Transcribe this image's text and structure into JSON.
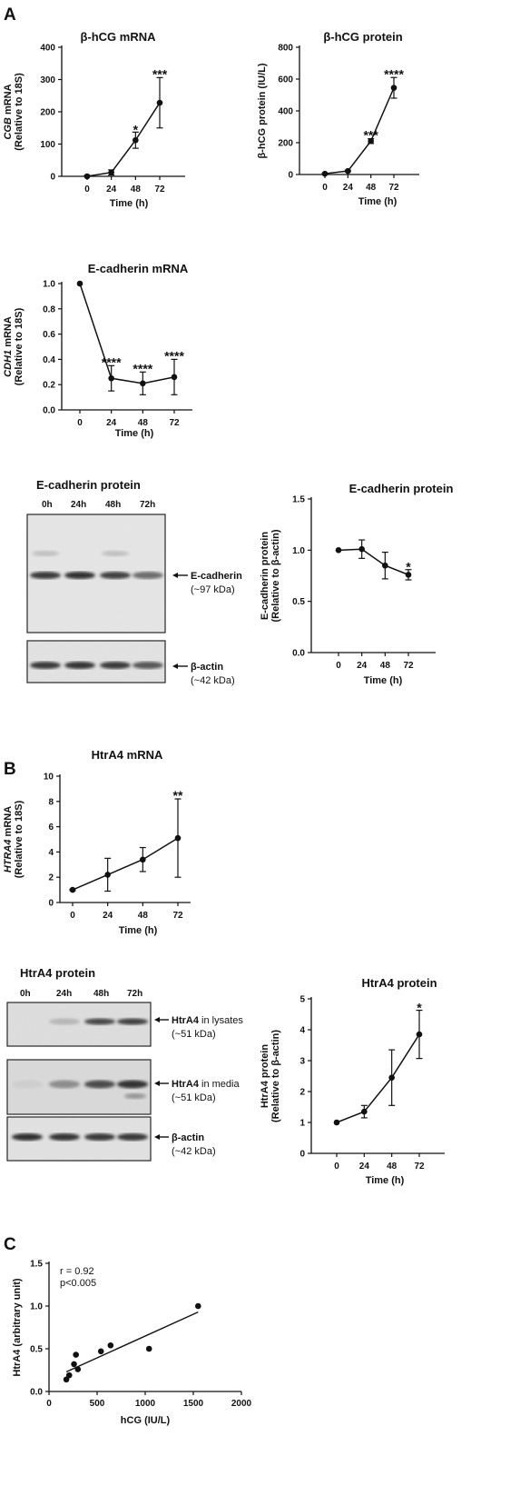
{
  "panels": {
    "A": "A",
    "B": "B",
    "C": "C"
  },
  "chart_data": [
    {
      "id": "hcg-mrna",
      "type": "line",
      "title": "β-hCG mRNA",
      "xlabel": "Time (h)",
      "ylabel_italic": "CGB",
      "ylabel_rest": " mRNA",
      "ylabel2": "(Relative to 18S)",
      "ylim": [
        0,
        400
      ],
      "yticks": [
        0,
        100,
        200,
        300,
        400
      ],
      "x": [
        0,
        24,
        48,
        72
      ],
      "xticks": [
        "0",
        "24",
        "48",
        "72"
      ],
      "values": [
        0,
        12,
        112,
        228
      ],
      "errors": [
        3,
        8,
        25,
        78
      ],
      "significance": [
        "",
        "",
        "*",
        "***"
      ]
    },
    {
      "id": "hcg-protein",
      "type": "line",
      "title": "β-hCG protein",
      "xlabel": "Time (h)",
      "ylabel": "β-hCG protein (IU/L)",
      "ylim": [
        0,
        800
      ],
      "yticks": [
        0,
        200,
        400,
        600,
        800
      ],
      "x": [
        0,
        24,
        48,
        72
      ],
      "xticks": [
        "0",
        "24",
        "48",
        "72"
      ],
      "values": [
        5,
        22,
        210,
        545
      ],
      "errors": [
        3,
        5,
        15,
        65
      ],
      "significance": [
        "",
        "",
        "***",
        "****"
      ]
    },
    {
      "id": "ecad-mrna",
      "type": "line",
      "title": "E-cadherin mRNA",
      "xlabel": "Time (h)",
      "ylabel_italic": "CDH1",
      "ylabel_rest": " mRNA",
      "ylabel2": "(Relative to 18S)",
      "ylim": [
        0,
        1.0
      ],
      "yticks": [
        "0.0",
        "0.2",
        "0.4",
        "0.6",
        "0.8",
        "1.0"
      ],
      "x": [
        0,
        24,
        48,
        72
      ],
      "xticks": [
        "0",
        "24",
        "48",
        "72"
      ],
      "values": [
        1.0,
        0.25,
        0.21,
        0.26
      ],
      "errors": [
        0,
        0.1,
        0.09,
        0.14
      ],
      "significance": [
        "",
        "****",
        "****",
        "****"
      ]
    },
    {
      "id": "ecad-protein",
      "type": "line",
      "title": "E-cadherin protein",
      "xlabel": "Time (h)",
      "ylabel": "E-cadherin protein",
      "ylabel2": "(Relative to β-actin)",
      "ylim": [
        0,
        1.5
      ],
      "yticks": [
        "0.0",
        "0.5",
        "1.0",
        "1.5"
      ],
      "x": [
        0,
        24,
        48,
        72
      ],
      "xticks": [
        "0",
        "24",
        "48",
        "72"
      ],
      "values": [
        1.0,
        1.01,
        0.85,
        0.76
      ],
      "errors": [
        0,
        0.09,
        0.13,
        0.05
      ],
      "significance": [
        "",
        "",
        "",
        "*"
      ]
    },
    {
      "id": "htra4-mrna",
      "type": "line",
      "title": "HtrA4 mRNA",
      "xlabel": "Time (h)",
      "ylabel_italic": "HTRA4",
      "ylabel_rest": " mRNA",
      "ylabel2": "(Relative to 18S)",
      "ylim": [
        0,
        10
      ],
      "yticks": [
        "0",
        "2",
        "4",
        "6",
        "8",
        "10"
      ],
      "x": [
        0,
        24,
        48,
        72
      ],
      "xticks": [
        "0",
        "24",
        "48",
        "72"
      ],
      "values": [
        1.0,
        2.2,
        3.4,
        5.1
      ],
      "errors": [
        0.05,
        1.3,
        0.95,
        3.1
      ],
      "significance": [
        "",
        "",
        "",
        "**"
      ]
    },
    {
      "id": "htra4-protein",
      "type": "line",
      "title": "HtrA4 protein",
      "xlabel": "Time (h)",
      "ylabel": "HtrA4 protein",
      "ylabel2": "(Relative to β-actin)",
      "ylim": [
        0,
        5
      ],
      "yticks": [
        "0",
        "1",
        "2",
        "3",
        "4",
        "5"
      ],
      "x": [
        0,
        24,
        48,
        72
      ],
      "xticks": [
        "0",
        "24",
        "48",
        "72"
      ],
      "values": [
        1.0,
        1.35,
        2.45,
        3.85
      ],
      "errors": [
        0,
        0.2,
        0.9,
        0.78
      ],
      "significance": [
        "",
        "",
        "",
        "*"
      ]
    },
    {
      "id": "correlation",
      "type": "scatter",
      "xlabel": "hCG (IU/L)",
      "ylabel": "HtrA4 (arbitrary unit)",
      "xlim": [
        0,
        2000
      ],
      "ylim": [
        0,
        1.5
      ],
      "xticks": [
        "0",
        "500",
        "1000",
        "1500",
        "2000"
      ],
      "yticks": [
        "0.0",
        "0.5",
        "1.0",
        "1.5"
      ],
      "x": [
        180,
        210,
        260,
        280,
        300,
        540,
        640,
        1040,
        1550
      ],
      "values": [
        0.14,
        0.19,
        0.32,
        0.43,
        0.26,
        0.47,
        0.54,
        0.5,
        1.0
      ],
      "fit_line": {
        "x": [
          180,
          1550
        ],
        "y": [
          0.23,
          0.93
        ]
      },
      "annotation": [
        "r = 0.92",
        "p<0.005"
      ]
    }
  ],
  "blots": {
    "ecad": {
      "title": "E-cadherin protein",
      "lanes": [
        "0h",
        "24h",
        "48h",
        "72h"
      ],
      "band1_label": "E-cadherin",
      "band1_sub": "(~97 kDa)",
      "band2_label": "β-actin",
      "band2_sub": "(~42 kDa)",
      "band1_intensity": [
        0.85,
        0.9,
        0.82,
        0.6
      ],
      "band2_intensity": [
        0.85,
        0.88,
        0.85,
        0.7
      ]
    },
    "htra4": {
      "title": "HtrA4 protein",
      "lanes": [
        "0h",
        "24h",
        "48h",
        "72h"
      ],
      "band1_label": "HtrA4",
      "band1_suffix": " in lysates",
      "band1_sub": "(~51 kDa)",
      "band2_label": "HtrA4",
      "band2_suffix": " in media",
      "band2_sub": "(~51 kDa)",
      "band3_label": "β-actin",
      "band3_sub": "(~42 kDa)",
      "band1_intensity": [
        0.0,
        0.2,
        0.78,
        0.82
      ],
      "band2_intensity": [
        0.05,
        0.4,
        0.75,
        0.88
      ],
      "band3_intensity": [
        0.9,
        0.88,
        0.85,
        0.86
      ]
    }
  }
}
